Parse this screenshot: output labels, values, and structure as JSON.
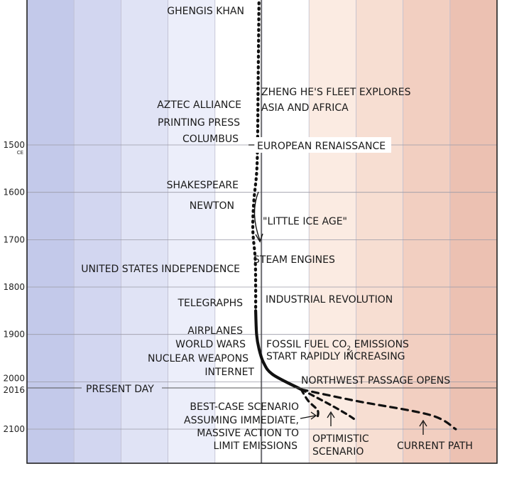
{
  "chart_data": {
    "type": "line",
    "bands": [
      "#c3c9ea",
      "#d2d6f0",
      "#e0e3f5",
      "#eceefa",
      "#ffffff",
      "#ffffff",
      "#fbebe2",
      "#f7ded2",
      "#f2cfc1",
      "#ecc1b2"
    ],
    "y_ticks": [
      {
        "year": 1500,
        "label": "1500",
        "sub": "CE"
      },
      {
        "year": 1600,
        "label": "1600"
      },
      {
        "year": 1700,
        "label": "1700"
      },
      {
        "year": 1800,
        "label": "1800"
      },
      {
        "year": 1900,
        "label": "1900"
      },
      {
        "year": 2000,
        "label": "2000"
      },
      {
        "year": 2016,
        "label": "2016"
      },
      {
        "year": 2100,
        "label": "2100"
      }
    ],
    "historical_path": [
      {
        "year": 1200,
        "temp": -0.05
      },
      {
        "year": 1300,
        "temp": -0.06
      },
      {
        "year": 1400,
        "temp": -0.07
      },
      {
        "year": 1500,
        "temp": -0.08
      },
      {
        "year": 1560,
        "temp": -0.1
      },
      {
        "year": 1620,
        "temp": -0.16
      },
      {
        "year": 1680,
        "temp": -0.18
      },
      {
        "year": 1740,
        "temp": -0.13
      },
      {
        "year": 1800,
        "temp": -0.12
      },
      {
        "year": 1850,
        "temp": -0.12
      }
    ],
    "observed_path": [
      {
        "year": 1850,
        "temp": -0.12
      },
      {
        "year": 1900,
        "temp": -0.1
      },
      {
        "year": 1930,
        "temp": -0.05
      },
      {
        "year": 1960,
        "temp": 0.05
      },
      {
        "year": 1985,
        "temp": 0.25
      },
      {
        "year": 2016,
        "temp": 0.85
      }
    ],
    "projections": [
      {
        "label": "best-case",
        "points": [
          {
            "year": 2016,
            "temp": 0.85
          },
          {
            "year": 2040,
            "temp": 1.0
          },
          {
            "year": 2060,
            "temp": 1.2
          },
          {
            "year": 2075,
            "temp": 1.2
          }
        ]
      },
      {
        "label": "optimistic",
        "points": [
          {
            "year": 2016,
            "temp": 0.85
          },
          {
            "year": 2050,
            "temp": 1.5
          },
          {
            "year": 2070,
            "temp": 1.85
          },
          {
            "year": 2080,
            "temp": 2.0
          }
        ]
      },
      {
        "label": "current",
        "points": [
          {
            "year": 2016,
            "temp": 0.85
          },
          {
            "year": 2040,
            "temp": 2.0
          },
          {
            "year": 2070,
            "temp": 3.6
          },
          {
            "year": 2100,
            "temp": 4.15
          }
        ]
      }
    ],
    "annotations": {
      "ghengis": "GHENGIS KHAN",
      "zheng1": "ZHENG HE'S FLEET EXPLORES",
      "zheng2": "ASIA AND AFRICA",
      "aztec": "AZTEC ALLIANCE",
      "printing": "PRINTING PRESS",
      "columbus": "COLUMBUS",
      "renaissance": "EUROPEAN RENAISSANCE",
      "shakespeare": "SHAKESPEARE",
      "newton": "NEWTON",
      "iceage": "\"LITTLE ICE AGE\"",
      "steam": "STEAM ENGINES",
      "independence": "UNITED STATES INDEPENDENCE",
      "telegraphs": "TELEGRAPHS",
      "industrial": "INDUSTRIAL REVOLUTION",
      "airplanes": "AIRPLANES",
      "worldwars": "WORLD WARS",
      "nuclear": "NUCLEAR WEAPONS",
      "internet": "INTERNET",
      "fossil1a": "FOSSIL FUEL CO",
      "fossil1sub": "2",
      "fossil1b": " EMISSIONS",
      "fossil2": "START RAPIDLY INCREASING",
      "northwest": "NORTHWEST PASSAGE OPENS",
      "present": "PRESENT DAY",
      "best1": "BEST-CASE SCENARIO",
      "best2": "ASSUMING IMMEDIATE,",
      "best3": "MASSIVE ACTION TO",
      "best4": "LIMIT EMISSIONS",
      "opt1": "OPTIMISTIC",
      "opt2": "SCENARIO",
      "current": "CURRENT PATH"
    }
  }
}
